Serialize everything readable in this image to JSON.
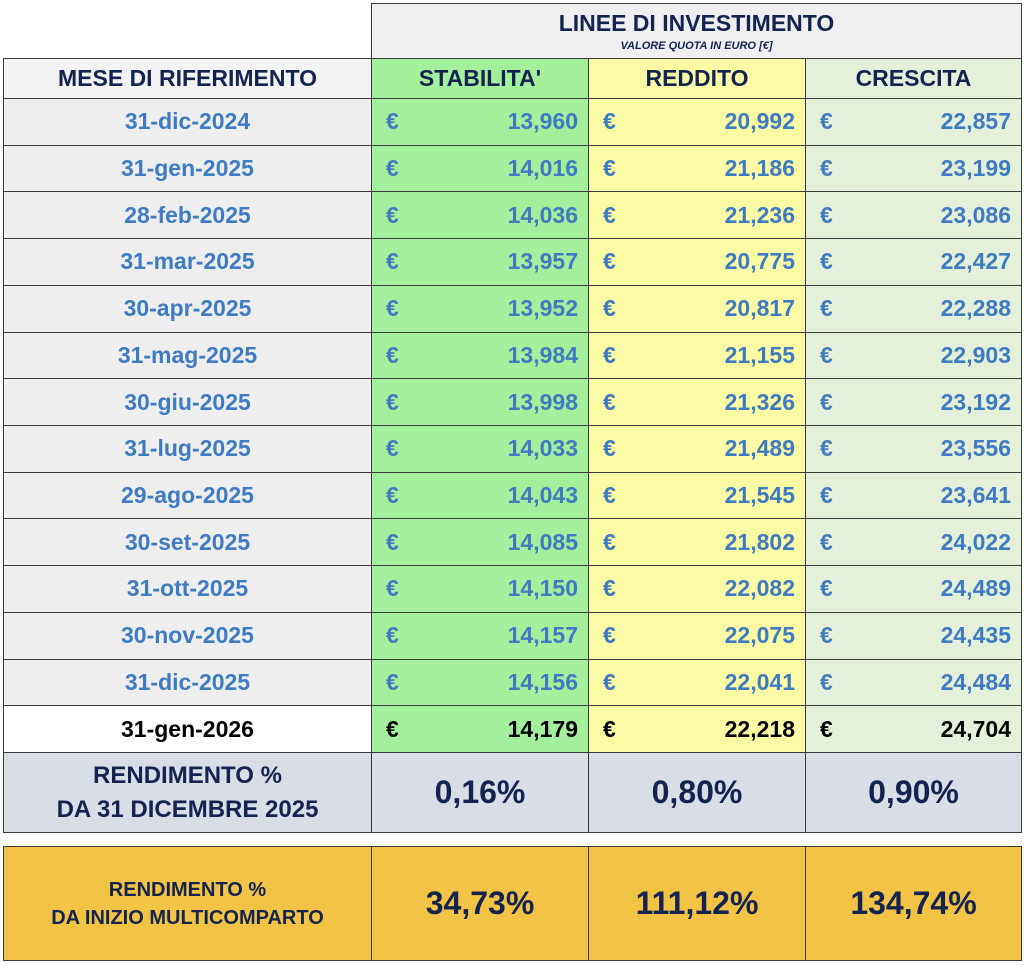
{
  "header": {
    "title": "LINEE DI INVESTIMENTO",
    "subtitle": "VALORE QUOTA IN EURO [€]"
  },
  "table": {
    "columns": [
      "MESE DI RIFERIMENTO",
      "STABILITA'",
      "REDDITO",
      "CRESCITA"
    ],
    "currency": "€",
    "rows": [
      [
        "31-dic-2024",
        "13,960",
        "20,992",
        "22,857"
      ],
      [
        "31-gen-2025",
        "14,016",
        "21,186",
        "23,199"
      ],
      [
        "28-feb-2025",
        "14,036",
        "21,236",
        "23,086"
      ],
      [
        "31-mar-2025",
        "13,957",
        "20,775",
        "22,427"
      ],
      [
        "30-apr-2025",
        "13,952",
        "20,817",
        "22,288"
      ],
      [
        "31-mag-2025",
        "13,984",
        "21,155",
        "22,903"
      ],
      [
        "30-giu-2025",
        "13,998",
        "21,326",
        "23,192"
      ],
      [
        "31-lug-2025",
        "14,033",
        "21,489",
        "23,556"
      ],
      [
        "29-ago-2025",
        "14,043",
        "21,545",
        "23,641"
      ],
      [
        "30-set-2025",
        "14,085",
        "21,802",
        "24,022"
      ],
      [
        "31-ott-2025",
        "14,150",
        "22,082",
        "24,489"
      ],
      [
        "30-nov-2025",
        "14,157",
        "22,075",
        "24,435"
      ],
      [
        "31-dic-2025",
        "14,156",
        "22,041",
        "24,484"
      ],
      [
        "31-gen-2026",
        "14,179",
        "22,218",
        "24,704"
      ]
    ]
  },
  "returns_month": {
    "label_lines": [
      "RENDIMENTO %",
      "DA 31 DICEMBRE 2025"
    ],
    "values": [
      "0,16%",
      "0,80%",
      "0,90%"
    ]
  },
  "returns_inception": {
    "label_lines": [
      "RENDIMENTO %",
      "DA INIZIO MULTICOMPARTO"
    ],
    "values": [
      "34,73%",
      "111,12%",
      "134,74%"
    ]
  }
}
